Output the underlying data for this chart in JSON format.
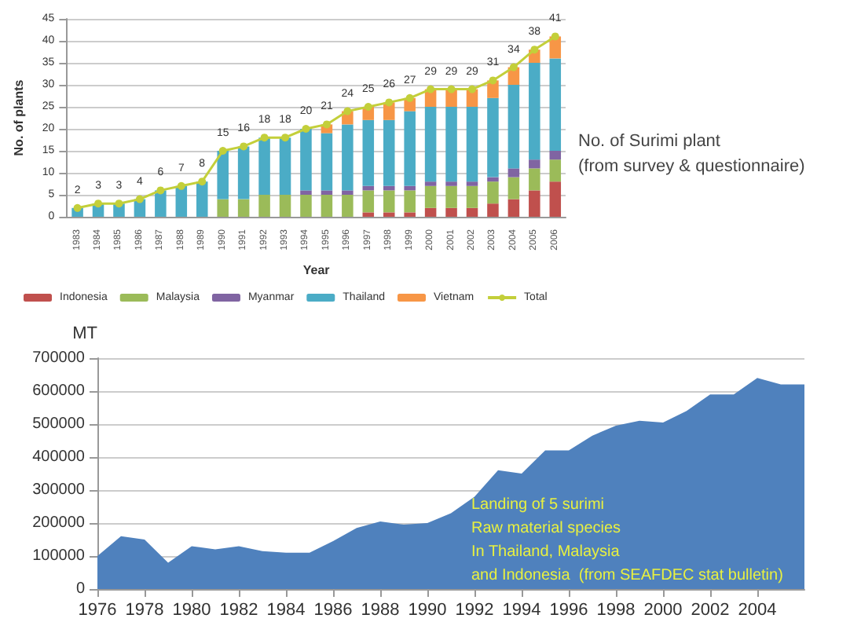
{
  "chart_data": [
    {
      "type": "bar",
      "stacked": true,
      "xlabel": "Year",
      "ylabel": "No. of plants",
      "annotations": [
        "No. of Surimi plant\n(from survey & questionnaire)"
      ],
      "categories": [
        "1983",
        "1984",
        "1985",
        "1986",
        "1987",
        "1988",
        "1989",
        "1990",
        "1991",
        "1992",
        "1993",
        "1994",
        "1995",
        "1996",
        "1997",
        "1998",
        "1999",
        "2000",
        "2001",
        "2002",
        "2003",
        "2004",
        "2005",
        "2006"
      ],
      "series": [
        {
          "name": "Indonesia",
          "color": "#c0504d",
          "values": [
            0,
            0,
            0,
            0,
            0,
            0,
            0,
            0,
            0,
            0,
            0,
            0,
            0,
            0,
            1,
            1,
            1,
            2,
            2,
            2,
            3,
            4,
            6,
            8
          ]
        },
        {
          "name": "Malaysia",
          "color": "#9bbb59",
          "values": [
            0,
            0,
            0,
            0,
            0,
            0,
            0,
            4,
            4,
            5,
            5,
            5,
            5,
            5,
            5,
            5,
            5,
            5,
            5,
            5,
            5,
            5,
            5,
            5
          ]
        },
        {
          "name": "Myanmar",
          "color": "#8064a2",
          "values": [
            0,
            0,
            0,
            0,
            0,
            0,
            0,
            0,
            0,
            0,
            0,
            1,
            1,
            1,
            1,
            1,
            1,
            1,
            1,
            1,
            1,
            2,
            2,
            2
          ]
        },
        {
          "name": "Thailand",
          "color": "#4bacc6",
          "values": [
            2,
            3,
            3,
            4,
            6,
            7,
            8,
            11,
            12,
            13,
            13,
            14,
            13,
            15,
            15,
            15,
            17,
            17,
            17,
            17,
            18,
            19,
            22,
            21
          ]
        },
        {
          "name": "Vietnam",
          "color": "#f79646",
          "values": [
            0,
            0,
            0,
            0,
            0,
            0,
            0,
            0,
            0,
            0,
            0,
            0,
            2,
            3,
            3,
            4,
            3,
            4,
            4,
            4,
            4,
            4,
            3,
            5
          ]
        },
        {
          "name": "Total",
          "type": "line",
          "color": "#c3cf3a",
          "marker": "circle",
          "values": [
            2,
            3,
            3,
            4,
            6,
            7,
            8,
            15,
            16,
            18,
            18,
            20,
            21,
            24,
            25,
            26,
            27,
            29,
            29,
            29,
            31,
            34,
            38,
            41
          ],
          "value_labels": [
            "2",
            "3",
            "3",
            "4",
            "6",
            "7",
            "8",
            "15",
            "16",
            "18",
            "18",
            "20",
            "21",
            "24",
            "25",
            "26",
            "27",
            "29",
            "29",
            "29",
            "31",
            "34",
            "38",
            "41"
          ]
        }
      ],
      "ylim": [
        0,
        45
      ],
      "yticks": [
        0,
        5,
        10,
        15,
        20,
        25,
        30,
        35,
        40,
        45
      ],
      "grid": "y",
      "legend": "bottom"
    },
    {
      "type": "area",
      "ylabel": "MT",
      "annotations": [
        "Landing of 5 surimi\nRaw material species\nIn Thailand, Malaysia\nand Indonesia  (from SEAFDEC stat bulletin)"
      ],
      "x": [
        1976,
        1977,
        1978,
        1979,
        1980,
        1981,
        1982,
        1983,
        1984,
        1985,
        1986,
        1987,
        1988,
        1989,
        1990,
        1991,
        1992,
        1993,
        1994,
        1995,
        1996,
        1997,
        1998,
        1999,
        2000,
        2001,
        2002,
        2003,
        2004,
        2005,
        2006
      ],
      "values": [
        100000,
        160000,
        150000,
        80000,
        130000,
        120000,
        130000,
        115000,
        110000,
        110000,
        145000,
        185000,
        205000,
        195000,
        200000,
        230000,
        280000,
        360000,
        350000,
        420000,
        420000,
        465000,
        495000,
        510000,
        505000,
        540000,
        590000,
        590000,
        640000,
        620000,
        620000
      ],
      "color": "#4f81bd",
      "marker": "none",
      "xlim": [
        1976,
        2006
      ],
      "xticks": [
        1976,
        1978,
        1980,
        1982,
        1984,
        1986,
        1988,
        1990,
        1992,
        1994,
        1996,
        1998,
        2000,
        2002,
        2004
      ],
      "ylim": [
        0,
        700000
      ],
      "yticks": [
        0,
        100000,
        200000,
        300000,
        400000,
        500000,
        600000,
        700000
      ],
      "grid": "y",
      "legend": false
    }
  ]
}
